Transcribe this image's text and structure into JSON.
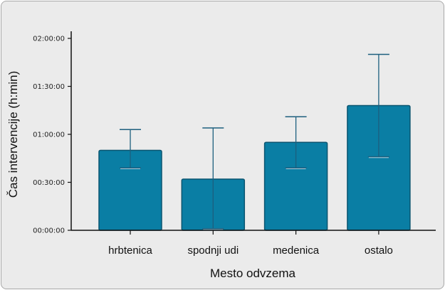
{
  "chart_data": {
    "type": "bar",
    "xlabel": "Mesto odvzema",
    "ylabel": "Čas intervencije (h:min)",
    "categories": [
      "hrbtenica",
      "spodnji udi",
      "medenica",
      "ostalo"
    ],
    "values_minutes": [
      50,
      32,
      55,
      78
    ],
    "error_low_minutes": [
      39,
      1,
      39,
      46
    ],
    "error_high_minutes": [
      63,
      64,
      71,
      110
    ],
    "ylim_minutes": [
      0,
      120
    ],
    "y_ticks_minutes": [
      0,
      30,
      60,
      90,
      120
    ],
    "y_tick_labels": [
      "00:00:00",
      "00:30:00",
      "01:00:00",
      "01:30:00",
      "02:00:00"
    ],
    "bar_color": "#0a7ea4",
    "bar_edge_color": "#0b5570",
    "error_bar_color": "#1d5f7e",
    "background_color": "#ebebeb",
    "grid": false
  }
}
